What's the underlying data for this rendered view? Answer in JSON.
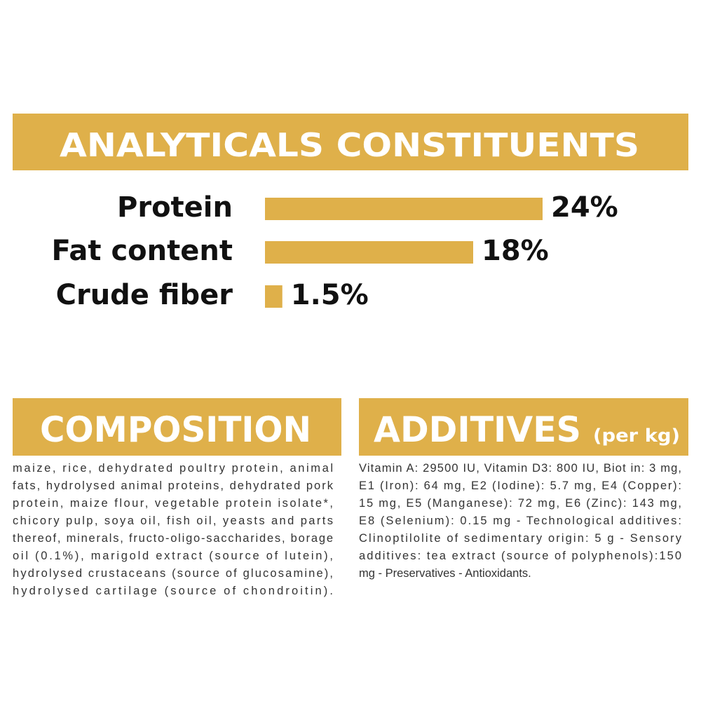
{
  "chart_data": {
    "type": "bar",
    "title": "ANALYTICALS CONSTITUENTS",
    "categories": [
      "Protein",
      "Fat content",
      "Crude fiber"
    ],
    "values": [
      24,
      18,
      1.5
    ],
    "value_labels": [
      "24%",
      "18%",
      "1.5%"
    ],
    "color": "#dfb04a"
  },
  "composition": {
    "title": "COMPOSITION",
    "lines": [
      "maize, rice, dehydrated poultry protein, animal",
      "fats, hydrolysed animal proteins, dehydrated pork",
      "protein, maize flour, vegetable protein isolate*,",
      "chicory pulp, soya oil, fish oil, yeasts and parts",
      "thereof, minerals, fructo-oligo-saccharides, borage",
      "oil (0.1%), marigold extract (source of lutein),",
      "hydrolysed crustaceans (source of glucosamine),",
      "hydrolysed cartilage (source of chondroitin)."
    ]
  },
  "additives": {
    "title": "ADDITIVES",
    "subtitle": "(per kg)",
    "lines": [
      "Vitamin A: 29500 IU, Vitamin D3: 800 IU, Biot in: 3 mg,",
      "E1 (Iron): 64 mg, E2 (Iodine): 5.7 mg, E4 (Copper):",
      "15 mg, E5 (Manganese): 72 mg, E6 (Zinc): 143 mg,",
      "E8 (Selenium): 0.15 mg - Technological additives:",
      "Clinoptilolite of sedimentary origin: 5 g - Sensory",
      "additives: tea extract (source of polyphenols):150",
      "mg - Preservatives - Antioxidants."
    ]
  }
}
